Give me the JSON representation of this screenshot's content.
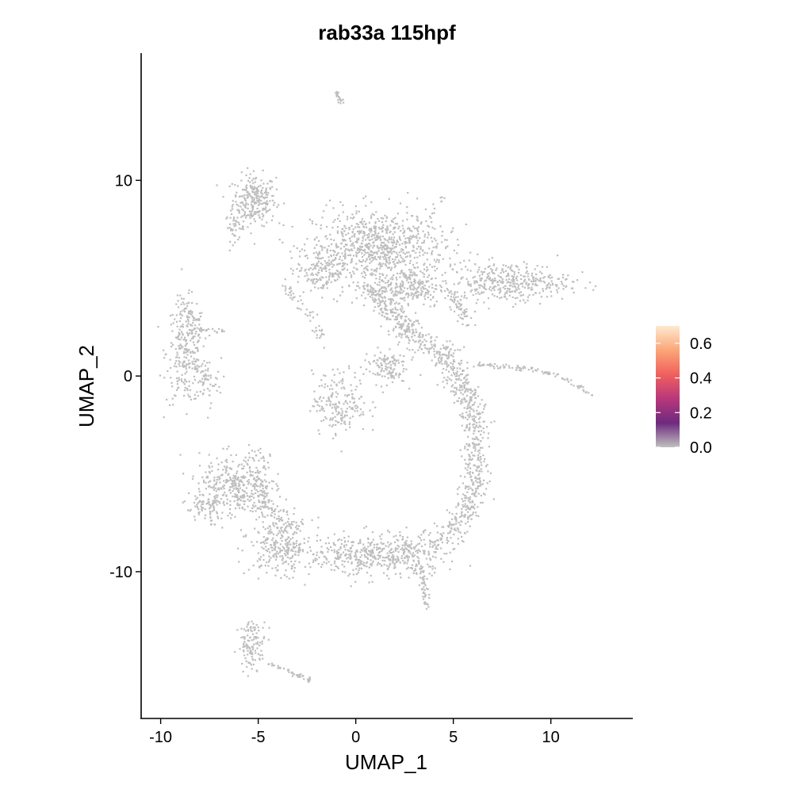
{
  "chart_data": {
    "type": "scatter",
    "title": "rab33a 115hpf",
    "xlabel": "UMAP_1",
    "ylabel": "UMAP_2",
    "xlim": [
      -11,
      14.2
    ],
    "ylim": [
      -17.5,
      16.5
    ],
    "xticks": [
      -10,
      -5,
      0,
      5,
      10
    ],
    "xtick_labels": [
      "-10",
      "-5",
      "0",
      "5",
      "10"
    ],
    "yticks": [
      -10,
      0,
      10
    ],
    "ytick_labels": [
      "-10",
      "0",
      "10"
    ],
    "grid": false,
    "point_color": "#bebebe",
    "legend": {
      "placement": "right",
      "type": "colorbar",
      "range": [
        0,
        0.7
      ],
      "ticks": [
        0.0,
        0.2,
        0.4,
        0.6
      ],
      "tick_labels": [
        "0.0",
        "0.2",
        "0.4",
        "0.6"
      ],
      "colors": [
        "#c0c0c0",
        "#6e2a7e",
        "#b8377a",
        "#f0605d",
        "#fba678",
        "#fde9cf"
      ]
    },
    "clusters": [
      {
        "cx": -5.2,
        "cy": 9.0,
        "sx": 0.55,
        "sy": 0.65,
        "n": 260
      },
      {
        "cx": -6.2,
        "cy": 7.6,
        "sx": 0.25,
        "sy": 0.35,
        "n": 40
      },
      {
        "cx": -8.7,
        "cy": 1.2,
        "sx": 0.5,
        "sy": 1.3,
        "n": 260
      },
      {
        "cx": -7.7,
        "cy": -0.3,
        "sx": 0.4,
        "sy": 0.6,
        "n": 60
      },
      {
        "cx": 1.2,
        "cy": 6.6,
        "sx": 1.7,
        "sy": 0.95,
        "n": 800
      },
      {
        "cx": -1.8,
        "cy": 5.4,
        "sx": 0.6,
        "sy": 0.6,
        "n": 160
      },
      {
        "cx": 2.8,
        "cy": 4.5,
        "sx": 0.9,
        "sy": 0.5,
        "n": 220
      },
      {
        "cx": 7.8,
        "cy": 4.8,
        "sx": 1.6,
        "sy": 0.5,
        "n": 380
      },
      {
        "cx": 1.5,
        "cy": 0.5,
        "sx": 0.55,
        "sy": 0.45,
        "n": 120
      },
      {
        "cx": -0.8,
        "cy": -1.4,
        "sx": 0.7,
        "sy": 0.8,
        "n": 190
      },
      {
        "cx": -6.2,
        "cy": -5.7,
        "sx": 0.9,
        "sy": 0.8,
        "n": 360
      },
      {
        "cx": -7.8,
        "cy": -6.8,
        "sx": 0.6,
        "sy": 0.4,
        "n": 60
      },
      {
        "cx": -3.8,
        "cy": -8.7,
        "sx": 0.8,
        "sy": 0.7,
        "n": 260
      },
      {
        "cx": 0.3,
        "cy": -9.2,
        "sx": 1.3,
        "sy": 0.55,
        "n": 330
      },
      {
        "cx": 3.0,
        "cy": -9.1,
        "sx": 0.8,
        "sy": 0.55,
        "n": 170
      },
      {
        "cx": -5.3,
        "cy": -13.7,
        "sx": 0.35,
        "sy": 0.6,
        "n": 120
      }
    ],
    "trails": [
      {
        "points": [
          [
            0.5,
            4.8
          ],
          [
            2.8,
            2.2
          ],
          [
            4.6,
            1.0
          ],
          [
            5.7,
            -0.8
          ],
          [
            6.2,
            -3.3
          ],
          [
            6.1,
            -5.6
          ],
          [
            5.4,
            -7.5
          ],
          [
            4.2,
            -8.6
          ]
        ],
        "width": 0.35,
        "n": 900
      },
      {
        "points": [
          [
            6.2,
            0.6
          ],
          [
            8.5,
            0.4
          ],
          [
            10.5,
            0.0
          ],
          [
            12.2,
            -1.0
          ]
        ],
        "width": 0.06,
        "n": 90
      },
      {
        "points": [
          [
            3.2,
            -9.4
          ],
          [
            3.7,
            -11.9
          ]
        ],
        "width": 0.1,
        "n": 50
      },
      {
        "points": [
          [
            -3.8,
            4.8
          ],
          [
            -2.2,
            3.0
          ],
          [
            -1.5,
            1.6
          ]
        ],
        "width": 0.15,
        "n": 50
      },
      {
        "points": [
          [
            -4.4,
            -14.7
          ],
          [
            -2.2,
            -15.6
          ]
        ],
        "width": 0.06,
        "n": 45
      },
      {
        "points": [
          [
            -8.6,
            2.4
          ],
          [
            -6.8,
            2.3
          ]
        ],
        "width": 0.05,
        "n": 25
      },
      {
        "points": [
          [
            -0.7,
            13.9
          ],
          [
            -1.0,
            14.5
          ]
        ],
        "width": 0.06,
        "n": 22
      },
      {
        "points": [
          [
            4.4,
            8.9
          ],
          [
            4.5,
            9.2
          ]
        ],
        "width": 0.05,
        "n": 6
      },
      {
        "points": [
          [
            -8.9,
            3.9
          ],
          [
            -8.0,
            2.0
          ]
        ],
        "width": 0.2,
        "n": 40
      },
      {
        "points": [
          [
            5.0,
            4.2
          ],
          [
            5.7,
            2.8
          ]
        ],
        "width": 0.2,
        "n": 60
      },
      {
        "points": [
          [
            -4.9,
            -4.0
          ],
          [
            -4.8,
            -6.5
          ],
          [
            -3.2,
            -8.0
          ]
        ],
        "width": 0.35,
        "n": 140
      }
    ]
  }
}
